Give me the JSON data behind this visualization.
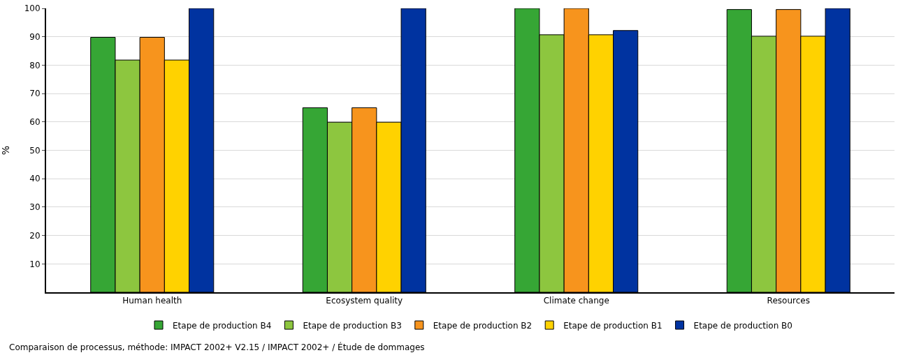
{
  "chart_data": {
    "type": "bar",
    "ylabel": "%",
    "categories": [
      "Human health",
      "Ecosystem quality",
      "Climate change",
      "Resources"
    ],
    "series": [
      {
        "name": "Etape de production B4",
        "color": "#36a635",
        "values": [
          89.8,
          65.0,
          100,
          99.6
        ]
      },
      {
        "name": "Etape de production B3",
        "color": "#8dc63f",
        "values": [
          81.8,
          59.9,
          90.7,
          90.2
        ]
      },
      {
        "name": "Etape de production B2",
        "color": "#f7941d",
        "values": [
          89.8,
          65.0,
          100,
          99.6
        ]
      },
      {
        "name": "Etape de production B1",
        "color": "#ffd200",
        "values": [
          81.8,
          59.9,
          90.7,
          90.2
        ]
      },
      {
        "name": "Etape de production B0",
        "color": "#0033a0",
        "values": [
          100,
          100,
          92.2,
          100
        ]
      }
    ],
    "ylim": [
      0,
      100
    ],
    "yticks": [
      10,
      20,
      30,
      40,
      50,
      60,
      70,
      80,
      90,
      100
    ],
    "grid": "y",
    "legend": "bottom",
    "annotations": [
      "Comparaison de processus, méthode: IMPACT 2002+ V2.15 / IMPACT 2002+ / Étude de dommages"
    ]
  }
}
